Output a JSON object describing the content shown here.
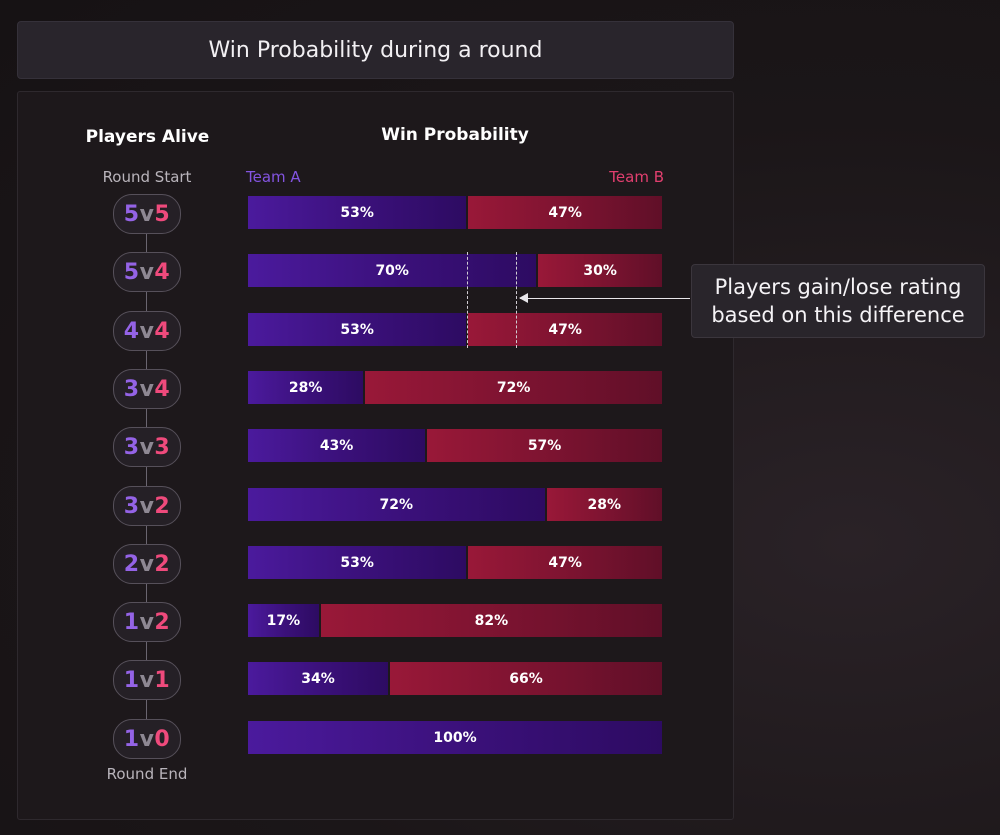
{
  "title": "Win Probability during a round",
  "headers": {
    "players_alive": "Players Alive",
    "win_probability": "Win Probability"
  },
  "labels": {
    "round_start": "Round Start",
    "round_end": "Round End",
    "team_a": "Team A",
    "team_b": "Team B"
  },
  "callout": {
    "line1": "Players gain/lose rating",
    "line2": "based on this difference"
  },
  "colors": {
    "team_a": "#3a1079",
    "team_b": "#7b1330",
    "team_a_text": "#8354e0",
    "team_b_text": "#e23f6f"
  },
  "chart_data": {
    "type": "bar",
    "stacked": true,
    "orientation": "horizontal",
    "title": "Win Probability during a round",
    "categories": [
      "5v5",
      "5v4",
      "4v4",
      "3v4",
      "3v3",
      "3v2",
      "2v2",
      "1v2",
      "1v1",
      "1v0"
    ],
    "series": [
      {
        "name": "Team A",
        "values": [
          53,
          70,
          53,
          28,
          43,
          72,
          53,
          17,
          34,
          100
        ]
      },
      {
        "name": "Team B",
        "values": [
          47,
          30,
          47,
          72,
          57,
          28,
          47,
          82,
          66,
          0
        ]
      }
    ],
    "value_labels": [
      [
        "53%",
        "47%"
      ],
      [
        "70%",
        "30%"
      ],
      [
        "53%",
        "47%"
      ],
      [
        "28%",
        "72%"
      ],
      [
        "43%",
        "57%"
      ],
      [
        "72%",
        "28%"
      ],
      [
        "53%",
        "47%"
      ],
      [
        "17%",
        "82%"
      ],
      [
        "34%",
        "66%"
      ],
      [
        "100%",
        ""
      ]
    ],
    "annotation": {
      "text": "Players gain/lose rating based on this difference",
      "between_categories": [
        "5v4",
        "4v4"
      ],
      "from_value": 53,
      "to_value": 70
    }
  }
}
